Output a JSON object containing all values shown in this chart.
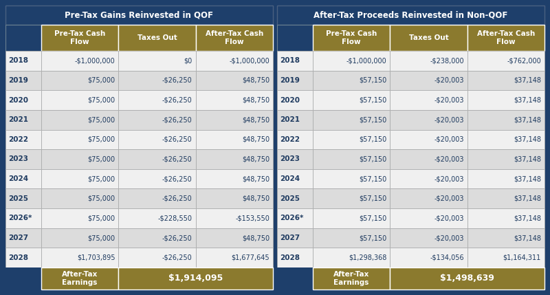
{
  "title_left": "Pre-Tax Gains Reinvested in QOF",
  "title_right": "After-Tax Proceeds Reinvested in Non-QOF",
  "col_headers": [
    "Pre-Tax Cash\nFlow",
    "Taxes Out",
    "After-Tax Cash\nFlow"
  ],
  "years": [
    "2018",
    "2019",
    "2020",
    "2021",
    "2022",
    "2023",
    "2024",
    "2025",
    "2026*",
    "2027",
    "2028"
  ],
  "left_data": [
    [
      "-$1,000,000",
      "$0",
      "-$1,000,000"
    ],
    [
      "$75,000",
      "-$26,250",
      "$48,750"
    ],
    [
      "$75,000",
      "-$26,250",
      "$48,750"
    ],
    [
      "$75,000",
      "-$26,250",
      "$48,750"
    ],
    [
      "$75,000",
      "-$26,250",
      "$48,750"
    ],
    [
      "$75,000",
      "-$26,250",
      "$48,750"
    ],
    [
      "$75,000",
      "-$26,250",
      "$48,750"
    ],
    [
      "$75,000",
      "-$26,250",
      "$48,750"
    ],
    [
      "$75,000",
      "-$228,550",
      "-$153,550"
    ],
    [
      "$75,000",
      "-$26,250",
      "$48,750"
    ],
    [
      "$1,703,895",
      "-$26,250",
      "$1,677,645"
    ]
  ],
  "right_data": [
    [
      "-$1,000,000",
      "-$238,000",
      "-$762,000"
    ],
    [
      "$57,150",
      "-$20,003",
      "$37,148"
    ],
    [
      "$57,150",
      "-$20,003",
      "$37,148"
    ],
    [
      "$57,150",
      "-$20,003",
      "$37,148"
    ],
    [
      "$57,150",
      "-$20,003",
      "$37,148"
    ],
    [
      "$57,150",
      "-$20,003",
      "$37,148"
    ],
    [
      "$57,150",
      "-$20,003",
      "$37,148"
    ],
    [
      "$57,150",
      "-$20,003",
      "$37,148"
    ],
    [
      "$57,150",
      "-$20,003",
      "$37,148"
    ],
    [
      "$57,150",
      "-$20,003",
      "$37,148"
    ],
    [
      "$1,298,368",
      "-$134,056",
      "$1,164,311"
    ]
  ],
  "left_footer_label": "After-Tax\nEarnings",
  "left_footer_val": "$1,914,095",
  "right_footer_label": "After-Tax\nEarnings",
  "right_footer_val": "$1,498,639",
  "bg_color": "#1e3f6b",
  "gold_color": "#8b7a2e",
  "white_row": "#f0f0f0",
  "gray_row": "#dcdcdc",
  "text_blue": "#1e3a5f",
  "white": "#ffffff",
  "border_color": "#aaaaaa"
}
